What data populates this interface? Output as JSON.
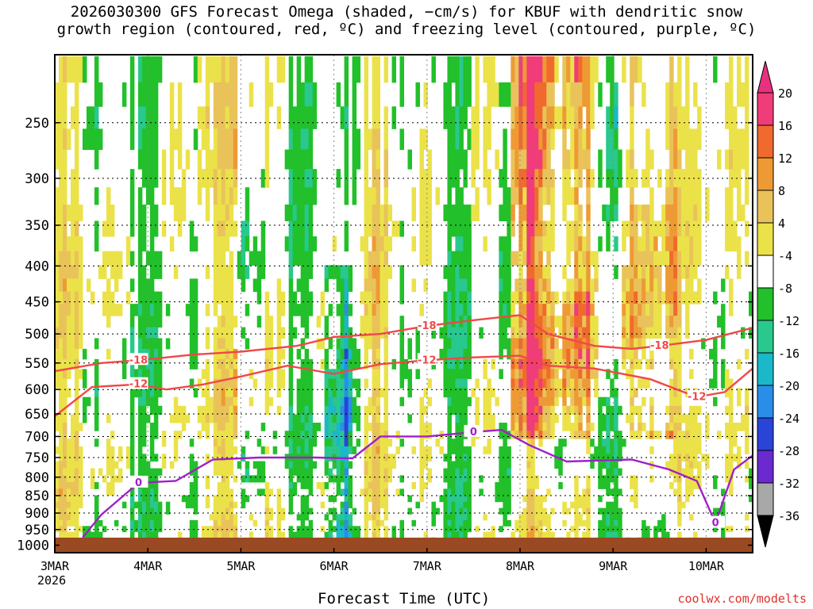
{
  "title_line1": "2026030300 GFS Forecast Omega (shaded, −cm/s) for KBUF with dendritic snow",
  "title_line2": "growth region (contoured, red, ºC) and freezing level (contoured, purple, ºC)",
  "credit": "coolwx.com/modelts",
  "chart_data": {
    "type": "heatmap",
    "xlabel": "Forecast Time (UTC)",
    "x_ticks": [
      {
        "label": "3MAR",
        "sub": "2026",
        "t": 0
      },
      {
        "label": "4MAR",
        "t": 1
      },
      {
        "label": "5MAR",
        "t": 2
      },
      {
        "label": "6MAR",
        "t": 3
      },
      {
        "label": "7MAR",
        "t": 4
      },
      {
        "label": "8MAR",
        "t": 5
      },
      {
        "label": "9MAR",
        "t": 6
      },
      {
        "label": "10MAR",
        "t": 7
      }
    ],
    "y_ticks": [
      250,
      300,
      350,
      400,
      450,
      500,
      550,
      600,
      650,
      700,
      750,
      800,
      850,
      900,
      950,
      1000
    ],
    "y_range": [
      200,
      1025
    ],
    "x_range": [
      0,
      7.5
    ],
    "colorbar": {
      "labels": [
        "20",
        "16",
        "12",
        "8",
        "4",
        "-4",
        "-8",
        "-12",
        "-16",
        "-20",
        "-24",
        "-28",
        "-32",
        "-36"
      ],
      "colors": [
        "#f03c78",
        "#f06a2e",
        "#ee9a34",
        "#e9c35a",
        "#ebe24a",
        "#ffffff",
        "#22c02a",
        "#28c88e",
        "#1ab8c8",
        "#2a8ee8",
        "#2a44d8",
        "#6a2ad0",
        "#9a18c8",
        "#a8a8a8"
      ]
    },
    "contours": [
      {
        "label": "-18",
        "color": "#f04848",
        "points": [
          [
            0,
            565
          ],
          [
            0.5,
            550
          ],
          [
            0.9,
            545
          ],
          [
            1.5,
            535
          ],
          [
            2,
            530
          ],
          [
            2.6,
            520
          ],
          [
            3,
            505
          ],
          [
            3.5,
            500
          ],
          [
            4,
            487
          ],
          [
            4.5,
            478
          ],
          [
            5,
            470
          ],
          [
            5.3,
            500
          ],
          [
            5.8,
            520
          ],
          [
            6.2,
            525
          ],
          [
            6.5,
            520
          ],
          [
            7,
            510
          ],
          [
            7.5,
            490
          ]
        ]
      },
      {
        "label": "-12",
        "color": "#f04848",
        "points": [
          [
            0,
            655
          ],
          [
            0.4,
            595
          ],
          [
            0.9,
            590
          ],
          [
            1.2,
            600
          ],
          [
            1.6,
            590
          ],
          [
            2,
            575
          ],
          [
            2.5,
            555
          ],
          [
            3,
            570
          ],
          [
            3.5,
            552
          ],
          [
            4,
            545
          ],
          [
            4.5,
            540
          ],
          [
            5,
            537
          ],
          [
            5.3,
            555
          ],
          [
            5.8,
            560
          ],
          [
            6.4,
            580
          ],
          [
            6.9,
            615
          ],
          [
            7.2,
            605
          ],
          [
            7.5,
            560
          ]
        ]
      },
      {
        "label": "0",
        "color": "#a020c8",
        "points": [
          [
            0.3,
            975
          ],
          [
            0.5,
            905
          ],
          [
            0.9,
            815
          ],
          [
            1.3,
            810
          ],
          [
            1.7,
            755
          ],
          [
            2.2,
            750
          ],
          [
            2.8,
            750
          ],
          [
            3.2,
            752
          ],
          [
            3.5,
            700
          ],
          [
            4,
            700
          ],
          [
            4.5,
            690
          ],
          [
            4.8,
            685
          ],
          [
            5.1,
            720
          ],
          [
            5.5,
            760
          ],
          [
            6.2,
            755
          ],
          [
            6.6,
            780
          ],
          [
            6.9,
            810
          ],
          [
            7.1,
            930
          ],
          [
            7.3,
            780
          ],
          [
            7.5,
            745
          ]
        ]
      }
    ]
  }
}
